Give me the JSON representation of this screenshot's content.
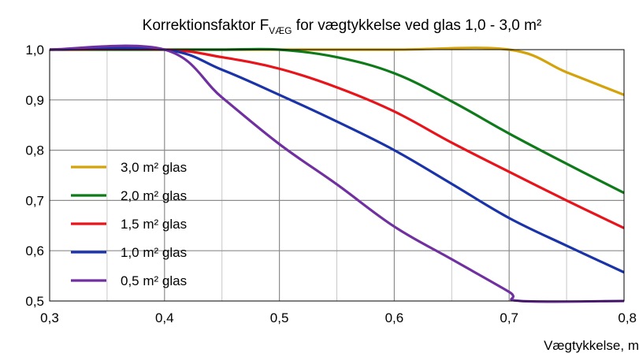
{
  "chart_data": {
    "type": "line",
    "title_prefix": "Korrektionsfaktor F",
    "title_subscript": "VÆG",
    "title_suffix": "  for vægtykkelse ved glas 1,0 - 3,0 m²",
    "xlabel": "Vægtykkelse, m",
    "ylabel": "",
    "xlim": [
      0.3,
      0.8
    ],
    "ylim": [
      0.5,
      1.0
    ],
    "x_ticks": [
      "0,3",
      "0,4",
      "0,5",
      "0,6",
      "0,7",
      "0,8"
    ],
    "y_ticks": [
      "0,5",
      "0,6",
      "0,7",
      "0,8",
      "0,9",
      "1,0"
    ],
    "grid": true,
    "legend_position": "lower-left",
    "series": [
      {
        "name": "3,0 m² glas",
        "color": "#d4a20a",
        "x": [
          0.3,
          0.4,
          0.5,
          0.6,
          0.7,
          0.75,
          0.8
        ],
        "y": [
          1.0,
          1.0,
          1.0,
          1.0,
          1.0,
          0.955,
          0.91
        ]
      },
      {
        "name": "2,0 m² glas",
        "color": "#0f7a1a",
        "x": [
          0.3,
          0.4,
          0.45,
          0.5,
          0.55,
          0.6,
          0.65,
          0.7,
          0.75,
          0.8
        ],
        "y": [
          1.0,
          1.0,
          1.0,
          1.0,
          0.985,
          0.953,
          0.897,
          0.833,
          0.773,
          0.715
        ]
      },
      {
        "name": "1,5 m² glas",
        "color": "#e8141b",
        "x": [
          0.3,
          0.4,
          0.45,
          0.5,
          0.55,
          0.6,
          0.65,
          0.7,
          0.75,
          0.8
        ],
        "y": [
          1.0,
          1.0,
          0.985,
          0.962,
          0.925,
          0.877,
          0.815,
          0.757,
          0.7,
          0.645
        ]
      },
      {
        "name": "1,0 m² glas",
        "color": "#1a33a8",
        "x": [
          0.3,
          0.4,
          0.45,
          0.5,
          0.55,
          0.6,
          0.65,
          0.7,
          0.75,
          0.8
        ],
        "y": [
          1.0,
          1.0,
          0.96,
          0.91,
          0.857,
          0.8,
          0.733,
          0.665,
          0.61,
          0.557
        ]
      },
      {
        "name": "0,5 m² glas",
        "color": "#7030a0",
        "x": [
          0.3,
          0.4,
          0.45,
          0.5,
          0.55,
          0.6,
          0.65,
          0.7,
          0.71,
          0.8
        ],
        "y": [
          1.0,
          1.0,
          0.905,
          0.812,
          0.732,
          0.648,
          0.583,
          0.518,
          0.5,
          0.5
        ]
      }
    ]
  }
}
